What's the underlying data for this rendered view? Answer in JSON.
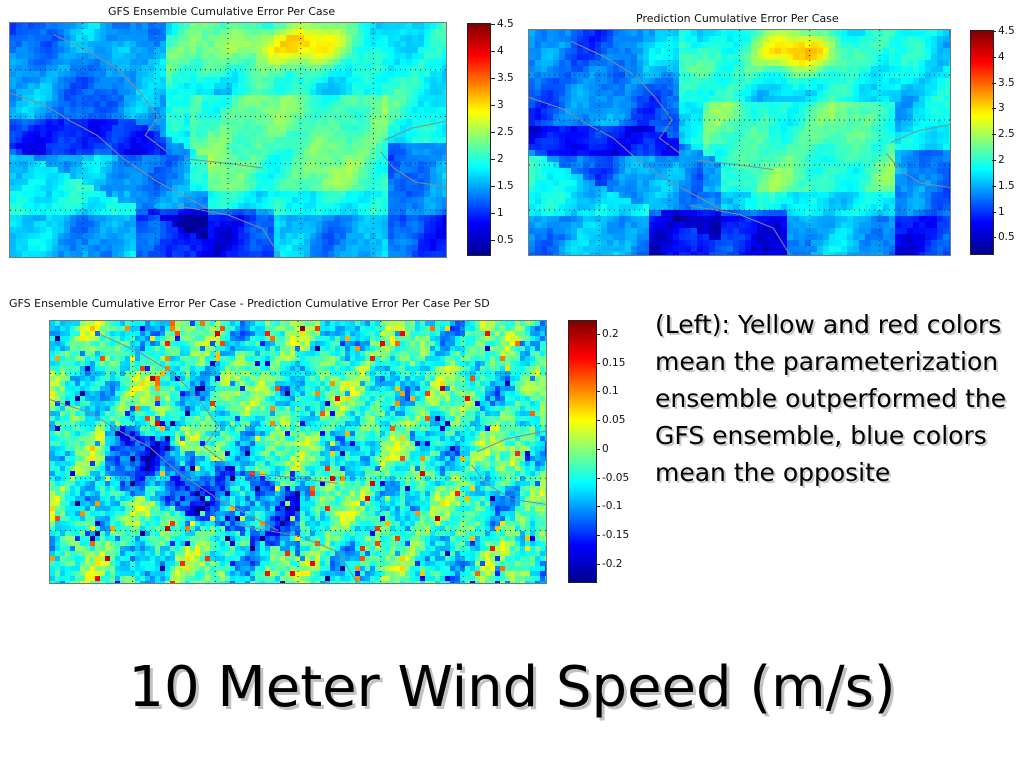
{
  "panels": {
    "gfs": {
      "title": "GFS Ensemble Cumulative Error Per Case"
    },
    "prediction": {
      "title": "Prediction Cumulative Error Per Case"
    },
    "difference": {
      "title": "GFS Ensemble Cumulative Error Per Case - Prediction Cumulative Error Per Case Per SD"
    }
  },
  "colorbars": {
    "error": {
      "ticks": [
        "4.5",
        "4",
        "3.5",
        "3",
        "2.5",
        "2",
        "1.5",
        "1",
        "0.5"
      ]
    },
    "difference": {
      "ticks": [
        "0.2",
        "0.15",
        "0.1",
        "0.05",
        "0",
        "-0.05",
        "-0.1",
        "-0.15",
        "-0.2"
      ]
    }
  },
  "caption": "(Left): Yellow and red colors mean the parameterization ensemble outperformed the GFS ensemble, blue colors mean the opposite",
  "slide_title": "10 Meter Wind Speed (m/s)",
  "chart_data": [
    {
      "type": "heatmap",
      "title": "GFS Ensemble Cumulative Error Per Case",
      "colormap": "jet",
      "clim": [
        0.3,
        4.5
      ],
      "colorbar_ticks": [
        4.5,
        4,
        3.5,
        3,
        2.5,
        2,
        1.5,
        1,
        0.5
      ]
    },
    {
      "type": "heatmap",
      "title": "Prediction Cumulative Error Per Case",
      "colormap": "jet",
      "clim": [
        0.3,
        4.5
      ],
      "colorbar_ticks": [
        4.5,
        4,
        3.5,
        3,
        2.5,
        2,
        1.5,
        1,
        0.5
      ]
    },
    {
      "type": "heatmap",
      "title": "GFS Ensemble Cumulative Error Per Case - Prediction Cumulative Error Per Case Per SD",
      "colormap": "jet",
      "clim": [
        -0.22,
        0.22
      ],
      "colorbar_ticks": [
        0.2,
        0.15,
        0.1,
        0.05,
        0,
        -0.05,
        -0.1,
        -0.15,
        -0.2
      ]
    }
  ]
}
